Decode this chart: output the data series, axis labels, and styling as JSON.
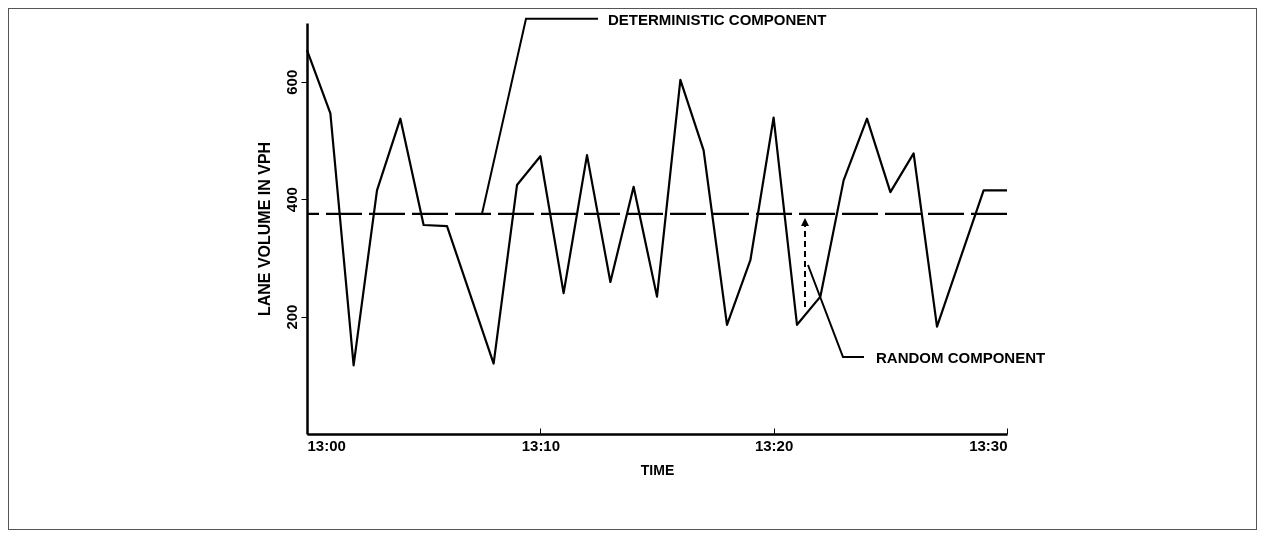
{
  "chart_data": {
    "type": "line",
    "xlabel": "TIME",
    "ylabel": "LANE VOLUME IN VPH",
    "x": [
      13,
      13.0167,
      13.0333,
      13.05,
      13.0667,
      13.0833,
      13.1,
      13.1333,
      13.15,
      13.1667,
      13.1833,
      13.2,
      13.2167,
      13.2333,
      13.25,
      13.2667,
      13.2833,
      13.3,
      13.3167,
      13.3333,
      13.35,
      13.3667,
      13.3833,
      13.4,
      13.4167,
      13.4333,
      13.45,
      13.4833,
      13.5
    ],
    "series": [
      {
        "color": "#000000",
        "values": [
          654,
          546,
          117,
          415,
          537,
          356,
          354,
          120,
          424,
          473,
          240,
          475,
          259,
          421,
          234,
          603,
          483,
          186,
          296,
          539,
          186,
          234,
          432,
          537,
          412,
          478,
          183,
          415,
          415
        ]
      }
    ],
    "xlim": [
      13,
      13.5
    ],
    "xticks": [
      {
        "value": 13,
        "label": "13:00"
      },
      {
        "value": 13.1667,
        "label": "13:10"
      },
      {
        "value": 13.3333,
        "label": "13:20"
      },
      {
        "value": 13.5,
        "label": "13:30"
      }
    ],
    "ylim": [
      0,
      700
    ],
    "yticks": [
      200,
      400,
      600
    ],
    "ref_lines": [
      {
        "axis": "y",
        "value": 375,
        "color": "#000000",
        "line_style": "dashed"
      }
    ],
    "annotations": [
      {
        "text": "DETERMINISTIC COMPONENT",
        "x": 13.125,
        "y": 375
      },
      "RANDOM COMPONENT"
    ]
  }
}
